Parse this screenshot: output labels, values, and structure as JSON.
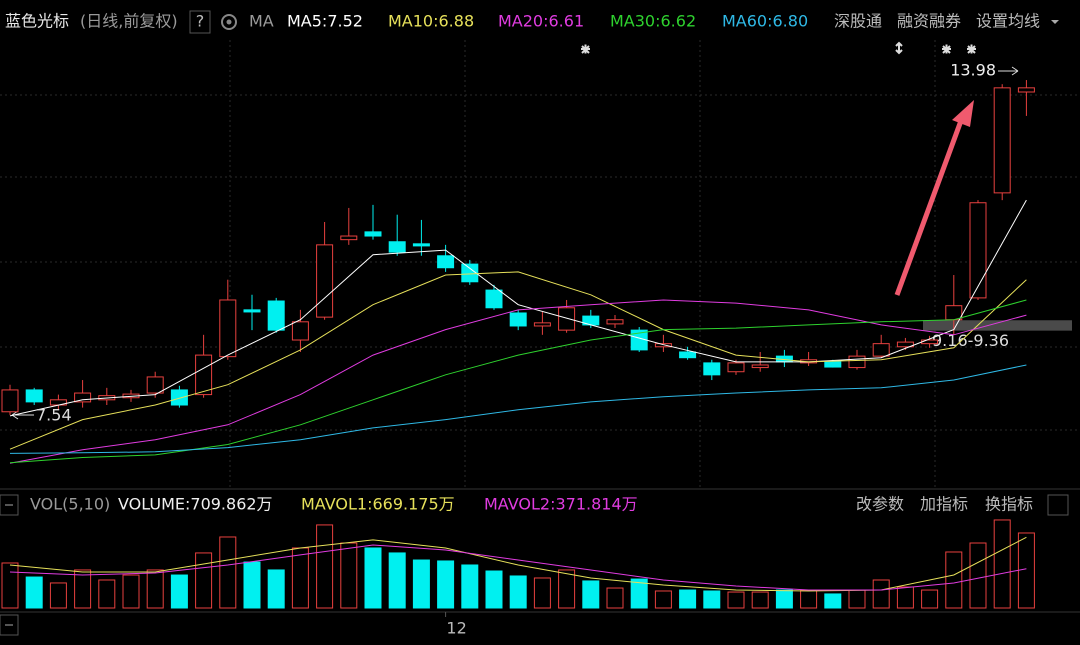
{
  "chart_data": [
    {
      "type": "candlestick",
      "title": "蓝色光标",
      "subtitle": "(日线,前复权)",
      "help": "?",
      "indicator": "MA",
      "buttons": [
        "深股通",
        "融资融券",
        "设置均线"
      ],
      "up_color": "#e8413f",
      "down_color": "#00f0f0",
      "ylim": [
        6.48,
        14.75
      ],
      "open": [
        7.6,
        8.02,
        7.73,
        7.79,
        7.83,
        7.87,
        7.96,
        8.02,
        7.93,
        8.66,
        9.56,
        9.73,
        8.98,
        9.42,
        10.91,
        11.06,
        10.87,
        10.83,
        10.6,
        10.44,
        9.94,
        9.5,
        9.25,
        9.17,
        9.44,
        9.29,
        9.17,
        8.85,
        8.75,
        8.54,
        8.37,
        8.45,
        8.67,
        8.54,
        8.56,
        8.45,
        8.67,
        8.85,
        8.91,
        9.37,
        9.79,
        11.81,
        13.75
      ],
      "high": [
        8.12,
        8.06,
        7.93,
        8.21,
        8.06,
        8.02,
        8.37,
        8.1,
        9.08,
        10.14,
        9.85,
        9.79,
        9.56,
        11.25,
        11.52,
        11.58,
        11.39,
        11.29,
        10.81,
        10.52,
        10.04,
        9.56,
        9.52,
        9.75,
        9.56,
        9.46,
        9.23,
        9.08,
        8.85,
        8.6,
        8.6,
        8.75,
        8.79,
        8.75,
        8.6,
        8.79,
        9.08,
        9.02,
        9.06,
        10.23,
        11.67,
        13.9,
        13.98
      ],
      "low": [
        7.54,
        7.73,
        7.64,
        7.68,
        7.73,
        7.79,
        7.87,
        7.68,
        7.87,
        8.6,
        9.17,
        9.12,
        8.75,
        9.37,
        10.81,
        10.91,
        10.6,
        10.6,
        10.29,
        10.04,
        9.56,
        9.17,
        9.08,
        9.12,
        9.21,
        9.21,
        8.75,
        8.75,
        8.6,
        8.21,
        8.31,
        8.37,
        8.46,
        8.48,
        8.45,
        8.41,
        8.64,
        8.79,
        8.83,
        9.08,
        9.75,
        11.67,
        13.29
      ],
      "close": [
        8.02,
        7.79,
        7.83,
        7.96,
        7.91,
        7.94,
        8.27,
        7.73,
        8.69,
        9.75,
        9.52,
        9.17,
        9.33,
        10.81,
        10.98,
        10.98,
        10.67,
        10.79,
        10.37,
        10.1,
        9.6,
        9.25,
        9.31,
        9.6,
        9.27,
        9.37,
        8.79,
        8.91,
        8.64,
        8.31,
        8.54,
        8.5,
        8.56,
        8.6,
        8.46,
        8.67,
        8.91,
        8.94,
        8.98,
        9.64,
        11.62,
        13.83,
        13.83
      ],
      "range": [
        9.16,
        9.36
      ],
      "range_label": "9.16-9.36",
      "series": [
        {
          "name": "MA5:7.52",
          "color": "#ffffff",
          "x": [
            0,
            3,
            6,
            9,
            12,
            15,
            18,
            21,
            24,
            27,
            30,
            33,
            36,
            39,
            42
          ],
          "values": [
            7.52,
            7.83,
            7.93,
            8.69,
            9.37,
            10.62,
            10.71,
            9.66,
            9.27,
            8.89,
            8.56,
            8.56,
            8.64,
            9.18,
            11.67
          ]
        },
        {
          "name": "MA10:6.88",
          "color": "#e6e05a",
          "x": [
            0,
            3,
            6,
            9,
            12,
            15,
            18,
            21,
            24,
            27,
            30,
            33,
            36,
            39,
            42
          ],
          "values": [
            6.88,
            7.45,
            7.73,
            8.12,
            8.79,
            9.66,
            10.23,
            10.29,
            9.85,
            9.18,
            8.69,
            8.56,
            8.6,
            8.83,
            10.14
          ]
        },
        {
          "name": "MA20:6.61",
          "color": "#e03ce0",
          "x": [
            0,
            3,
            6,
            9,
            12,
            15,
            18,
            21,
            24,
            27,
            30,
            33,
            36,
            39,
            42
          ],
          "values": [
            6.61,
            6.87,
            7.06,
            7.35,
            7.93,
            8.69,
            9.18,
            9.56,
            9.66,
            9.75,
            9.69,
            9.56,
            9.27,
            9.08,
            9.46
          ]
        },
        {
          "name": "MA30:6.62",
          "color": "#2ed12e",
          "x": [
            0,
            3,
            6,
            9,
            12,
            15,
            18,
            21,
            24,
            27,
            30,
            33,
            36,
            39,
            42
          ],
          "values": [
            6.62,
            6.72,
            6.77,
            6.97,
            7.35,
            7.83,
            8.31,
            8.69,
            8.98,
            9.18,
            9.21,
            9.27,
            9.33,
            9.37,
            9.75
          ]
        },
        {
          "name": "MA60:6.80",
          "color": "#2fb9e6",
          "x": [
            0,
            3,
            6,
            9,
            12,
            15,
            18,
            21,
            24,
            27,
            30,
            33,
            36,
            39,
            42
          ],
          "values": [
            6.8,
            6.81,
            6.83,
            6.91,
            7.06,
            7.29,
            7.45,
            7.64,
            7.79,
            7.89,
            7.96,
            8.02,
            8.06,
            8.21,
            8.5
          ]
        }
      ]
    },
    {
      "type": "bar",
      "title": "VOL(5,10)",
      "value_label": "VOLUME:709.862万",
      "buttons": [
        "改参数",
        "加指标",
        "换指标"
      ],
      "ylim": [
        0,
        880
      ],
      "categories": [
        null,
        null,
        null,
        null,
        null,
        null,
        null,
        null,
        null,
        null,
        null,
        null,
        null,
        null,
        null,
        null,
        null,
        null,
        "12",
        null,
        null,
        null,
        null,
        null,
        null,
        null,
        null,
        null,
        null,
        null,
        null,
        null,
        null,
        null,
        null,
        null,
        null,
        null,
        null,
        null,
        null,
        null,
        null
      ],
      "values": [
        426,
        293,
        237,
        360,
        265,
        312,
        360,
        312,
        521,
        672,
        435,
        360,
        568,
        786,
        615,
        568,
        521,
        454,
        445,
        407,
        350,
        303,
        284,
        360,
        256,
        189,
        274,
        161,
        170,
        161,
        151,
        151,
        170,
        170,
        133,
        170,
        265,
        199,
        170,
        530,
        615,
        833,
        709.862
      ],
      "series": [
        {
          "name": "MAVOL1:669.175万",
          "color": "#e6e05a",
          "x": [
            0,
            3,
            6,
            9,
            12,
            15,
            18,
            21,
            24,
            27,
            30,
            33,
            36,
            39,
            42
          ],
          "values": [
            407,
            341,
            341,
            454,
            568,
            644,
            568,
            407,
            284,
            218,
            170,
            161,
            170,
            312,
            669.175
          ]
        },
        {
          "name": "MAVOL2:371.814万",
          "color": "#e03ce0",
          "x": [
            0,
            3,
            6,
            9,
            12,
            15,
            18,
            21,
            24,
            27,
            30,
            33,
            36,
            39,
            42
          ],
          "values": [
            341,
            312,
            331,
            407,
            502,
            596,
            549,
            454,
            360,
            265,
            208,
            170,
            170,
            237,
            371.814
          ]
        }
      ]
    }
  ]
}
